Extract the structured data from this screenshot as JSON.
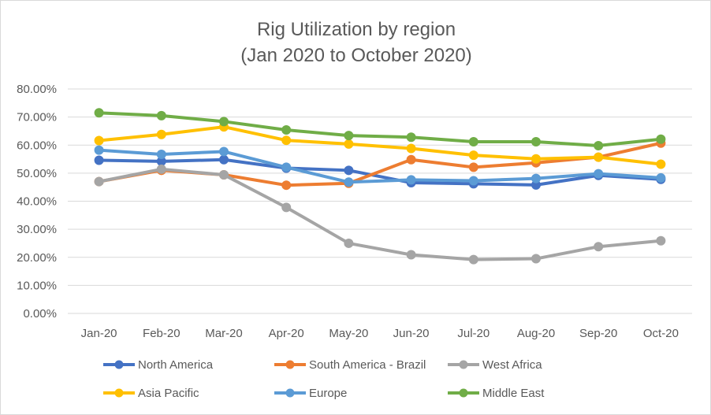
{
  "chart_data": {
    "type": "line",
    "title": [
      "Rig Utilization by region",
      "(Jan 2020 to October 2020)"
    ],
    "categories": [
      "Jan-20",
      "Feb-20",
      "Mar-20",
      "Apr-20",
      "May-20",
      "Jun-20",
      "Jul-20",
      "Aug-20",
      "Sep-20",
      "Oct-20"
    ],
    "y_ticks": [
      "0.00%",
      "10.00%",
      "20.00%",
      "30.00%",
      "40.00%",
      "50.00%",
      "60.00%",
      "70.00%",
      "80.00%"
    ],
    "ylim": [
      0,
      0.8
    ],
    "grid": true,
    "legend_position": "bottom",
    "series": [
      {
        "name": "North America",
        "color": "#4472C4",
        "values": [
          0.546,
          0.542,
          0.548,
          0.518,
          0.51,
          0.466,
          0.462,
          0.458,
          0.492,
          0.478
        ]
      },
      {
        "name": "South America - Brazil",
        "color": "#ED7D31",
        "values": [
          0.47,
          0.51,
          0.494,
          0.457,
          0.464,
          0.548,
          0.521,
          0.537,
          0.557,
          0.607
        ]
      },
      {
        "name": "West Africa",
        "color": "#A5A5A5",
        "values": [
          0.47,
          0.514,
          0.494,
          0.378,
          0.25,
          0.209,
          0.192,
          0.195,
          0.238,
          0.259
        ]
      },
      {
        "name": "Asia Pacific",
        "color": "#FFC000",
        "values": [
          0.616,
          0.638,
          0.665,
          0.617,
          0.604,
          0.588,
          0.564,
          0.551,
          0.557,
          0.532
        ]
      },
      {
        "name": "Europe",
        "color": "#5B9BD5",
        "values": [
          0.582,
          0.567,
          0.577,
          0.521,
          0.468,
          0.476,
          0.473,
          0.481,
          0.498,
          0.483
        ]
      },
      {
        "name": "Middle East",
        "color": "#70AD47",
        "values": [
          0.715,
          0.705,
          0.684,
          0.654,
          0.634,
          0.628,
          0.612,
          0.612,
          0.598,
          0.621
        ]
      }
    ]
  }
}
